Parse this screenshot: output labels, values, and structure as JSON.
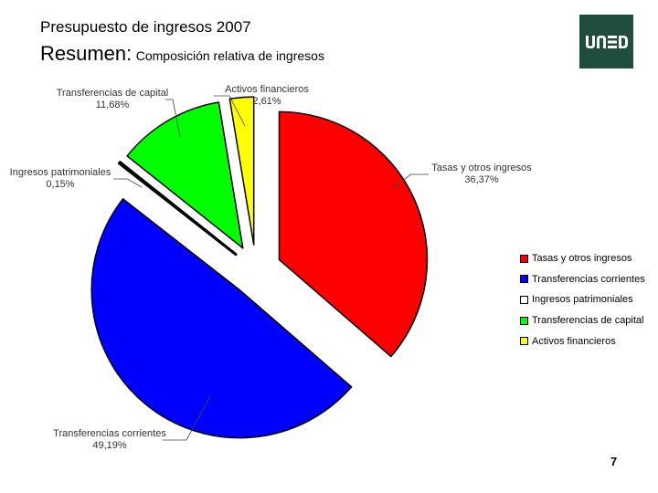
{
  "header": {
    "title_line1": "Presupuesto de ingresos 2007",
    "title_prefix": "Resumen:",
    "title_suffix": "Composición relativa de ingresos"
  },
  "logo": {
    "text": "UNED",
    "color": "#1f4e3d"
  },
  "page_number": "7",
  "chart_data": {
    "type": "pie",
    "title": "",
    "exploded": true,
    "legend_position": "right",
    "slices": [
      {
        "name": "Tasas y otros ingresos",
        "value": 36.37,
        "label": "36,37%",
        "color": "#ff0000"
      },
      {
        "name": "Transferencias corrientes",
        "value": 49.19,
        "label": "49,19%",
        "color": "#0000ff"
      },
      {
        "name": "Ingresos patrimoniales",
        "value": 0.15,
        "label": "0,15%",
        "color": "#ffffff"
      },
      {
        "name": "Transferencias de capital",
        "value": 11.68,
        "label": "11,68%",
        "color": "#00ff00"
      },
      {
        "name": "Activos financieros",
        "value": 2.61,
        "label": "2,61%",
        "color": "#ffff00"
      }
    ]
  }
}
